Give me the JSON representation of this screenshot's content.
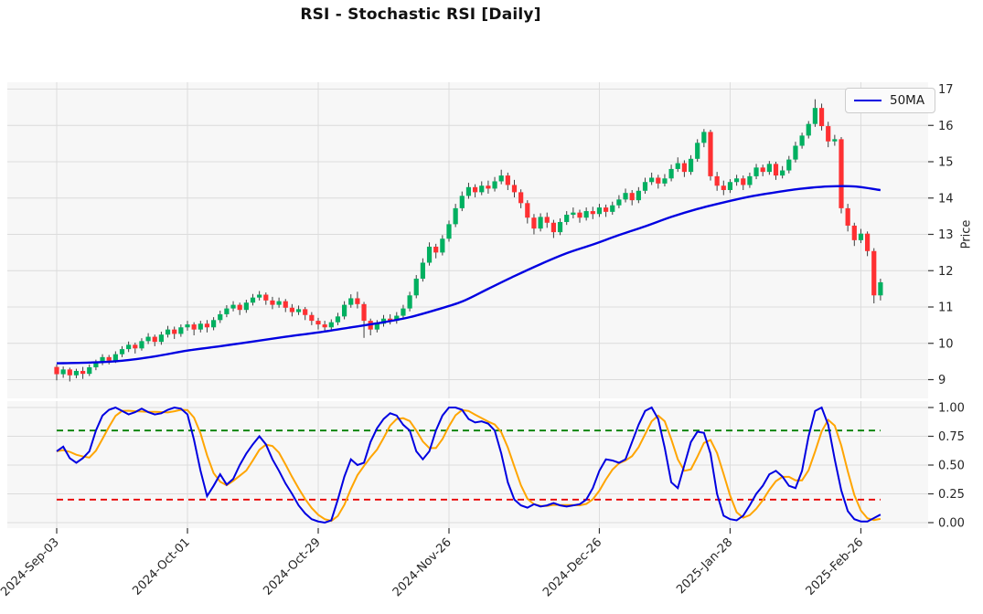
{
  "title": "RSI - Stochastic RSI [Daily]",
  "price_panel": {
    "ylabel": "Price",
    "legend_label": "50MA",
    "ytick_values": [
      17,
      16,
      15,
      14,
      13,
      12,
      11,
      10,
      9
    ]
  },
  "stoch_panel": {
    "ytick_labels": [
      "1.00",
      "0.75",
      "0.50",
      "0.25",
      "0.00"
    ],
    "ytick_values": [
      1.0,
      0.75,
      0.5,
      0.25,
      0.0
    ]
  },
  "x_axis": {
    "tick_labels": [
      "2024-Sep-03",
      "2024-Oct-01",
      "2024-Oct-29",
      "2024-Nov-26",
      "2024-Dec-26",
      "2025-Jan-28",
      "2025-Feb-26"
    ],
    "tick_indices": [
      0,
      20,
      40,
      60,
      83,
      103,
      123
    ]
  },
  "colors": {
    "up": "#00b060",
    "down": "#fe3032",
    "wick": "#3d3d3d",
    "ma": "#0000e1",
    "stoch_k": "#0000e1",
    "stoch_d": "#ffa500",
    "overbought": "#008000",
    "oversold": "#e80000",
    "grid": "#dcdcdc",
    "panel_bg": "#f7f7f7",
    "tick_text": "#262626"
  },
  "chart_data": [
    {
      "type": "candlestick",
      "name": "price",
      "ylabel": "Price",
      "ylim": [
        8.45,
        17.2
      ],
      "grid": true,
      "legend_position": "upper right",
      "ohlc": [
        [
          9.35,
          9.42,
          8.98,
          9.15
        ],
        [
          9.15,
          9.36,
          9.05,
          9.28
        ],
        [
          9.28,
          9.33,
          8.95,
          9.12
        ],
        [
          9.12,
          9.3,
          9.04,
          9.24
        ],
        [
          9.24,
          9.35,
          9.02,
          9.16
        ],
        [
          9.16,
          9.42,
          9.1,
          9.34
        ],
        [
          9.34,
          9.55,
          9.26,
          9.48
        ],
        [
          9.48,
          9.7,
          9.4,
          9.62
        ],
        [
          9.62,
          9.68,
          9.42,
          9.52
        ],
        [
          9.52,
          9.78,
          9.46,
          9.7
        ],
        [
          9.7,
          9.92,
          9.62,
          9.84
        ],
        [
          9.84,
          10.05,
          9.76,
          9.96
        ],
        [
          9.96,
          10.02,
          9.72,
          9.86
        ],
        [
          9.86,
          10.14,
          9.8,
          10.06
        ],
        [
          10.06,
          10.28,
          9.98,
          10.18
        ],
        [
          10.18,
          10.24,
          9.92,
          10.04
        ],
        [
          10.04,
          10.32,
          9.96,
          10.24
        ],
        [
          10.24,
          10.48,
          10.16,
          10.38
        ],
        [
          10.38,
          10.46,
          10.12,
          10.26
        ],
        [
          10.26,
          10.52,
          10.18,
          10.44
        ],
        [
          10.44,
          10.62,
          10.35,
          10.52
        ],
        [
          10.52,
          10.58,
          10.22,
          10.38
        ],
        [
          10.38,
          10.62,
          10.3,
          10.54
        ],
        [
          10.54,
          10.64,
          10.3,
          10.44
        ],
        [
          10.44,
          10.72,
          10.36,
          10.64
        ],
        [
          10.64,
          10.9,
          10.56,
          10.8
        ],
        [
          10.8,
          11.05,
          10.72,
          10.96
        ],
        [
          10.96,
          11.16,
          10.88,
          11.06
        ],
        [
          11.06,
          11.12,
          10.78,
          10.92
        ],
        [
          10.92,
          11.2,
          10.84,
          11.12
        ],
        [
          11.12,
          11.36,
          11.04,
          11.26
        ],
        [
          11.26,
          11.44,
          11.18,
          11.34
        ],
        [
          11.34,
          11.4,
          11.06,
          11.18
        ],
        [
          11.18,
          11.28,
          10.94,
          11.06
        ],
        [
          11.06,
          11.26,
          10.98,
          11.16
        ],
        [
          11.16,
          11.22,
          10.86,
          10.98
        ],
        [
          10.98,
          11.08,
          10.74,
          10.86
        ],
        [
          10.86,
          11.04,
          10.78,
          10.94
        ],
        [
          10.94,
          11.0,
          10.64,
          10.78
        ],
        [
          10.78,
          10.86,
          10.5,
          10.62
        ],
        [
          10.62,
          10.7,
          10.38,
          10.52
        ],
        [
          10.52,
          10.62,
          10.3,
          10.44
        ],
        [
          10.44,
          10.66,
          10.36,
          10.58
        ],
        [
          10.58,
          10.84,
          10.5,
          10.74
        ],
        [
          10.74,
          11.16,
          10.66,
          11.06
        ],
        [
          11.06,
          11.35,
          10.98,
          11.24
        ],
        [
          11.24,
          11.42,
          10.96,
          11.08
        ],
        [
          11.08,
          11.14,
          10.15,
          10.62
        ],
        [
          10.62,
          10.68,
          10.22,
          10.38
        ],
        [
          10.38,
          10.64,
          10.3,
          10.54
        ],
        [
          10.54,
          10.78,
          10.46,
          10.68
        ],
        [
          10.68,
          10.8,
          10.52,
          10.62
        ],
        [
          10.62,
          10.86,
          10.54,
          10.76
        ],
        [
          10.76,
          11.06,
          10.68,
          10.96
        ],
        [
          10.96,
          11.42,
          10.88,
          11.32
        ],
        [
          11.32,
          11.88,
          11.24,
          11.78
        ],
        [
          11.78,
          12.34,
          11.7,
          12.22
        ],
        [
          12.22,
          12.78,
          12.14,
          12.66
        ],
        [
          12.66,
          12.74,
          12.34,
          12.5
        ],
        [
          12.5,
          12.98,
          12.42,
          12.88
        ],
        [
          12.88,
          13.38,
          12.8,
          13.28
        ],
        [
          13.28,
          13.84,
          13.2,
          13.72
        ],
        [
          13.72,
          14.18,
          13.64,
          14.06
        ],
        [
          14.06,
          14.42,
          13.98,
          14.3
        ],
        [
          14.3,
          14.38,
          14.02,
          14.16
        ],
        [
          14.16,
          14.46,
          14.08,
          14.34
        ],
        [
          14.34,
          14.48,
          14.12,
          14.26
        ],
        [
          14.26,
          14.58,
          14.18,
          14.46
        ],
        [
          14.46,
          14.78,
          14.38,
          14.62
        ],
        [
          14.62,
          14.7,
          14.22,
          14.36
        ],
        [
          14.36,
          14.5,
          14.02,
          14.16
        ],
        [
          14.16,
          14.24,
          13.72,
          13.86
        ],
        [
          13.86,
          13.94,
          13.3,
          13.46
        ],
        [
          13.46,
          13.56,
          13.0,
          13.16
        ],
        [
          13.16,
          13.58,
          13.08,
          13.48
        ],
        [
          13.48,
          13.6,
          13.18,
          13.32
        ],
        [
          13.32,
          13.4,
          12.9,
          13.06
        ],
        [
          13.06,
          13.44,
          12.98,
          13.34
        ],
        [
          13.34,
          13.64,
          13.26,
          13.54
        ],
        [
          13.54,
          13.74,
          13.44,
          13.6
        ],
        [
          13.6,
          13.68,
          13.32,
          13.46
        ],
        [
          13.46,
          13.74,
          13.38,
          13.64
        ],
        [
          13.64,
          13.76,
          13.42,
          13.56
        ],
        [
          13.56,
          13.84,
          13.48,
          13.74
        ],
        [
          13.74,
          13.82,
          13.48,
          13.62
        ],
        [
          13.62,
          13.9,
          13.54,
          13.8
        ],
        [
          13.8,
          14.08,
          13.72,
          13.96
        ],
        [
          13.96,
          14.26,
          13.88,
          14.14
        ],
        [
          14.14,
          14.22,
          13.8,
          13.94
        ],
        [
          13.94,
          14.3,
          13.86,
          14.2
        ],
        [
          14.2,
          14.56,
          14.12,
          14.44
        ],
        [
          14.44,
          14.7,
          14.36,
          14.56
        ],
        [
          14.56,
          14.64,
          14.26,
          14.4
        ],
        [
          14.4,
          14.66,
          14.32,
          14.54
        ],
        [
          14.54,
          14.92,
          14.46,
          14.8
        ],
        [
          14.8,
          15.12,
          14.72,
          14.96
        ],
        [
          14.96,
          15.04,
          14.58,
          14.72
        ],
        [
          14.72,
          15.18,
          14.64,
          15.08
        ],
        [
          15.08,
          15.62,
          15.0,
          15.52
        ],
        [
          15.52,
          15.9,
          15.4,
          15.82
        ],
        [
          15.82,
          15.88,
          14.48,
          14.6
        ],
        [
          14.6,
          14.72,
          14.2,
          14.34
        ],
        [
          14.34,
          14.48,
          14.08,
          14.22
        ],
        [
          14.22,
          14.52,
          14.14,
          14.44
        ],
        [
          14.44,
          14.64,
          14.34,
          14.54
        ],
        [
          14.54,
          14.62,
          14.22,
          14.36
        ],
        [
          14.36,
          14.7,
          14.28,
          14.6
        ],
        [
          14.6,
          14.94,
          14.52,
          14.84
        ],
        [
          14.84,
          14.92,
          14.6,
          14.72
        ],
        [
          14.72,
          15.02,
          14.64,
          14.94
        ],
        [
          14.94,
          15.0,
          14.5,
          14.62
        ],
        [
          14.62,
          14.88,
          14.54,
          14.76
        ],
        [
          14.76,
          15.16,
          14.68,
          15.06
        ],
        [
          15.06,
          15.55,
          14.98,
          15.44
        ],
        [
          15.44,
          15.8,
          15.36,
          15.72
        ],
        [
          15.72,
          16.12,
          15.64,
          16.04
        ],
        [
          16.04,
          16.72,
          15.96,
          16.48
        ],
        [
          16.48,
          16.6,
          15.86,
          15.98
        ],
        [
          15.98,
          16.1,
          15.4,
          15.56
        ],
        [
          15.56,
          15.74,
          15.44,
          15.62
        ],
        [
          15.62,
          15.68,
          13.58,
          13.72
        ],
        [
          13.72,
          13.84,
          13.08,
          13.24
        ],
        [
          13.24,
          13.32,
          12.68,
          12.84
        ],
        [
          12.84,
          13.15,
          12.76,
          13.02
        ],
        [
          13.02,
          13.08,
          12.4,
          12.54
        ],
        [
          12.54,
          12.62,
          11.1,
          11.32
        ],
        [
          11.32,
          11.78,
          11.18,
          11.68
        ]
      ],
      "ma50": {
        "name": "50MA",
        "points": [
          [
            0,
            9.45
          ],
          [
            5,
            9.47
          ],
          [
            10,
            9.52
          ],
          [
            15,
            9.64
          ],
          [
            20,
            9.8
          ],
          [
            25,
            9.92
          ],
          [
            30,
            10.05
          ],
          [
            35,
            10.18
          ],
          [
            40,
            10.3
          ],
          [
            45,
            10.44
          ],
          [
            50,
            10.58
          ],
          [
            54,
            10.72
          ],
          [
            58,
            10.92
          ],
          [
            62,
            11.15
          ],
          [
            66,
            11.5
          ],
          [
            70,
            11.85
          ],
          [
            74,
            12.18
          ],
          [
            78,
            12.48
          ],
          [
            82,
            12.72
          ],
          [
            86,
            12.98
          ],
          [
            90,
            13.22
          ],
          [
            94,
            13.48
          ],
          [
            98,
            13.7
          ],
          [
            102,
            13.88
          ],
          [
            106,
            14.04
          ],
          [
            110,
            14.16
          ],
          [
            114,
            14.26
          ],
          [
            118,
            14.32
          ],
          [
            122,
            14.32
          ],
          [
            126,
            14.22
          ]
        ]
      }
    },
    {
      "type": "line",
      "name": "stochastic_rsi",
      "ylim": [
        -0.05,
        1.06
      ],
      "grid": true,
      "series": [
        {
          "name": "%K",
          "color_key": "stoch_k",
          "values": [
            0.62,
            0.66,
            0.56,
            0.52,
            0.56,
            0.62,
            0.8,
            0.93,
            0.98,
            1.0,
            0.97,
            0.94,
            0.96,
            0.99,
            0.96,
            0.94,
            0.95,
            0.98,
            1.0,
            0.99,
            0.94,
            0.72,
            0.45,
            0.23,
            0.32,
            0.42,
            0.33,
            0.38,
            0.5,
            0.6,
            0.68,
            0.75,
            0.68,
            0.55,
            0.45,
            0.34,
            0.25,
            0.15,
            0.08,
            0.03,
            0.01,
            0.0,
            0.02,
            0.2,
            0.4,
            0.55,
            0.5,
            0.52,
            0.7,
            0.82,
            0.9,
            0.95,
            0.93,
            0.85,
            0.8,
            0.62,
            0.55,
            0.62,
            0.8,
            0.93,
            1.0,
            1.0,
            0.98,
            0.9,
            0.87,
            0.88,
            0.86,
            0.8,
            0.6,
            0.35,
            0.2,
            0.15,
            0.13,
            0.16,
            0.14,
            0.15,
            0.17,
            0.15,
            0.14,
            0.15,
            0.16,
            0.2,
            0.3,
            0.45,
            0.55,
            0.54,
            0.52,
            0.55,
            0.7,
            0.85,
            0.97,
            1.0,
            0.9,
            0.65,
            0.35,
            0.3,
            0.5,
            0.7,
            0.79,
            0.78,
            0.6,
            0.25,
            0.06,
            0.03,
            0.02,
            0.06,
            0.15,
            0.25,
            0.32,
            0.42,
            0.45,
            0.4,
            0.32,
            0.3,
            0.45,
            0.75,
            0.97,
            1.0,
            0.85,
            0.55,
            0.28,
            0.1,
            0.03,
            0.01,
            0.01,
            0.04,
            0.07
          ]
        },
        {
          "name": "%D",
          "color_key": "stoch_d",
          "derived_from": "%K",
          "method": "SMA",
          "window": 4
        }
      ],
      "hlines": [
        {
          "value": 0.8,
          "style": "dashed",
          "color_key": "overbought"
        },
        {
          "value": 0.2,
          "style": "dashed",
          "color_key": "oversold"
        }
      ]
    }
  ]
}
